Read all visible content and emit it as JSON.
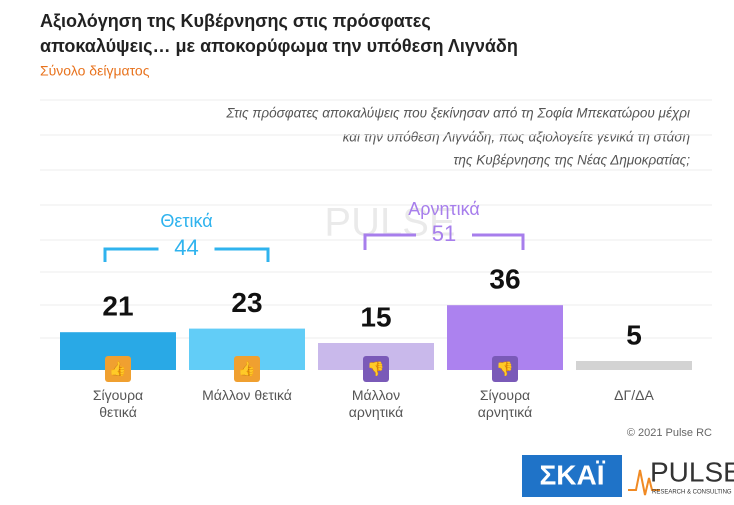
{
  "chart_data": {
    "type": "bar",
    "title": [
      "Αξιολόγηση της Κυβέρνησης στις πρόσφατες",
      "αποκαλύψεις… με αποκορύφωμα την υπόθεση Λιγνάδη"
    ],
    "subtitle": "Σύνολο δείγματος",
    "question": [
      "Στις πρόσφατες αποκαλύψεις που ξεκίνησαν από τη Σοφία Μπεκατώρου μέχρι",
      "και την υπόθεση Λιγνάδη, πως αξιολογείτε γενικά τη στάση",
      "της Κυβέρνησης της Νέας Δημοκρατίας;"
    ],
    "categories": [
      "Σίγουρα θετικά",
      "Μάλλον θετικά",
      "Μάλλον αρνητικά",
      "Σίγουρα αρνητικά",
      "ΔΓ/ΔΑ"
    ],
    "values": [
      21,
      23,
      15,
      36,
      5
    ],
    "colors": [
      "#29a9e6",
      "#62cdf7",
      "#c9b9eb",
      "#ac82ef",
      "#d3d3d3"
    ],
    "groups": [
      {
        "label": "Θετικά",
        "value": 44,
        "color": "#2fb3ee"
      },
      {
        "label": "Αρνητικά",
        "value": 51,
        "color": "#a77eec"
      }
    ],
    "copyright": "© 2021 Pulse RC",
    "logos": {
      "skai": "ΣΚΑΪ",
      "pulse": "PULSE",
      "pulse_sub": "RESEARCH & CONSULTING"
    }
  }
}
